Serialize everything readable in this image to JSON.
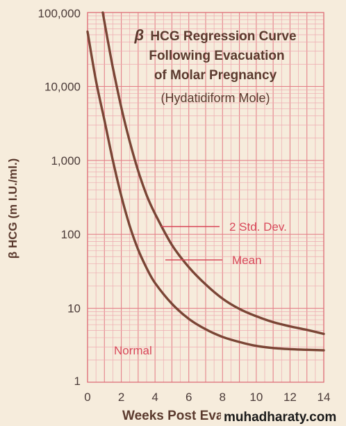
{
  "chart_data": {
    "type": "line",
    "title_lines": [
      "HCG Regression Curve",
      "Following Evacuation",
      "of Molar Pregnancy"
    ],
    "title_symbol": "β",
    "subtitle": "(Hydatidiform Mole)",
    "xlabel": "Weeks Post Evac",
    "ylabel": "β HCG (m I.U./ml.)",
    "x_ticks": [
      0,
      2,
      4,
      6,
      8,
      10,
      12,
      14
    ],
    "x_tick_labels": [
      "0",
      "2",
      "4",
      "6",
      "8",
      "10",
      "12",
      "14"
    ],
    "y_ticks": [
      1,
      10,
      100,
      1000,
      10000,
      100000
    ],
    "y_tick_labels": [
      "1",
      "10",
      "100",
      "1,000",
      "10,000",
      "100,000"
    ],
    "xlim": [
      0,
      14
    ],
    "ylim": [
      1,
      100000
    ],
    "y_scale": "log",
    "grid": true,
    "series": [
      {
        "name": "2 Std. Dev.",
        "color": "#7a4535",
        "x": [
          0.9,
          1.2,
          1.5,
          2,
          2.5,
          3,
          3.5,
          4,
          5,
          6,
          7,
          8,
          9,
          10,
          11,
          12,
          13,
          14
        ],
        "y": [
          100000,
          42000,
          18000,
          5200,
          1800,
          720,
          340,
          190,
          72,
          36,
          21,
          13.5,
          9.8,
          7.8,
          6.5,
          5.7,
          5.1,
          4.5
        ]
      },
      {
        "name": "Mean",
        "color": "#7a4535",
        "x": [
          0,
          0.5,
          1,
          1.5,
          2,
          2.5,
          3,
          3.5,
          4,
          5,
          6,
          7,
          8,
          9,
          10,
          11,
          12,
          13,
          14
        ],
        "y": [
          55000,
          12000,
          3500,
          1000,
          330,
          130,
          62,
          35,
          22,
          11.5,
          7.2,
          5.2,
          4.1,
          3.5,
          3.1,
          2.9,
          2.8,
          2.75,
          2.7
        ]
      }
    ],
    "annotations": [
      "2 Std. Dev.",
      "Mean",
      "Normal"
    ]
  },
  "watermark": "muhadharaty.com"
}
